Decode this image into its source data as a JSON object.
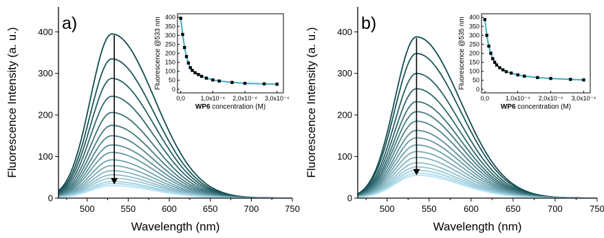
{
  "chart_data": [
    {
      "panel": "a)",
      "type": "line",
      "xlabel": "Wavelength (nm)",
      "ylabel": "Fluorescence Intensity (a. u.)",
      "xlim": [
        465,
        750
      ],
      "ylim": [
        0,
        460
      ],
      "xticks": [
        "500",
        "550",
        "600",
        "650",
        "700",
        "750"
      ],
      "yticks": [
        "0",
        "100",
        "200",
        "300",
        "400"
      ],
      "peak_x": 530,
      "series_peaks": [
        395,
        335,
        288,
        245,
        206,
        175,
        150,
        128,
        110,
        92,
        78,
        66,
        56,
        48,
        40,
        35,
        30
      ],
      "colors": {
        "dark": "#0f4a4e",
        "light": "#b6e3f4"
      },
      "arrow": {
        "x": 533,
        "from": 392,
        "to": 33
      },
      "inset": {
        "type": "scatter",
        "xlabel_bold": "WP6",
        "xlabel_rest": " concentration (M)",
        "ylabel": "Fluorescence @533 nm",
        "xlim": [
          -1e-05,
          0.00032
        ],
        "ylim": [
          -20,
          420
        ],
        "xticks": [
          "0,0",
          "1,0x10⁻⁴",
          "2,0x10⁻⁴",
          "3,0x10⁻⁴"
        ],
        "yticks": [
          "0",
          "50",
          "100",
          "150",
          "200",
          "250",
          "300",
          "350",
          "400"
        ],
        "x": [
          0.0,
          6e-06,
          1.2e-05,
          1.8e-05,
          2.4e-05,
          3e-05,
          3.6e-05,
          4.5e-05,
          5.5e-05,
          6.5e-05,
          8e-05,
          0.0001,
          0.00012,
          0.00016,
          0.0002,
          0.00026,
          0.0003
        ],
        "y": [
          395,
          305,
          232,
          182,
          146,
          120,
          105,
          92,
          82,
          72,
          62,
          52,
          46,
          38,
          33,
          30,
          28
        ],
        "fit_color": "#3aaec4"
      }
    },
    {
      "panel": "b)",
      "type": "line",
      "xlabel": "Wavelength (nm)",
      "ylabel": "Fluorescence Intensity (a. u.)",
      "xlim": [
        465,
        750
      ],
      "ylim": [
        0,
        460
      ],
      "xticks": [
        "500",
        "550",
        "600",
        "650",
        "700",
        "750"
      ],
      "yticks": [
        "0",
        "100",
        "200",
        "300",
        "400"
      ],
      "peak_x": 535,
      "series_peaks": [
        388,
        348,
        300,
        263,
        232,
        208,
        185,
        163,
        145,
        128,
        112,
        98,
        85,
        75,
        67,
        60,
        55
      ],
      "colors": {
        "dark": "#0f4a4e",
        "light": "#b6e3f4"
      },
      "arrow": {
        "x": 535,
        "from": 385,
        "to": 55
      },
      "inset": {
        "type": "scatter",
        "xlabel_bold": "WP6",
        "xlabel_rest": " concentration (M)",
        "ylabel": "Fluorescence @535 nm",
        "xlim": [
          -1e-05,
          0.00032
        ],
        "ylim": [
          -20,
          420
        ],
        "xticks": [
          "0,0",
          "1,0x10⁻⁴",
          "2,0x10⁻⁴",
          "3,0x10⁻⁴"
        ],
        "yticks": [
          "0",
          "50",
          "100",
          "150",
          "200",
          "250",
          "300",
          "350",
          "400"
        ],
        "x": [
          0.0,
          6e-06,
          1.2e-05,
          1.8e-05,
          2.4e-05,
          3e-05,
          3.6e-05,
          4.5e-05,
          5.5e-05,
          6.5e-05,
          8e-05,
          0.0001,
          0.00012,
          0.00016,
          0.0002,
          0.00026,
          0.0003
        ],
        "y": [
          388,
          300,
          240,
          200,
          170,
          150,
          135,
          120,
          108,
          98,
          90,
          80,
          73,
          65,
          60,
          55,
          52
        ],
        "fit_color": "#3aaec4"
      }
    }
  ]
}
